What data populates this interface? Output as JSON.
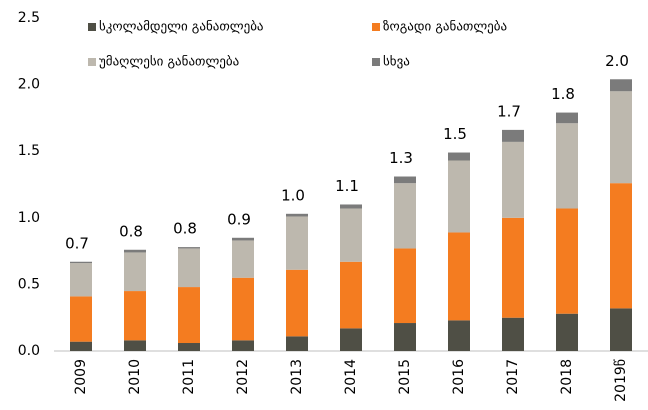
{
  "chart_data": {
    "type": "stacked_bar",
    "categories": [
      "2009",
      "2010",
      "2011",
      "2012",
      "2013",
      "2014",
      "2015",
      "2016",
      "2017",
      "2018",
      "2019წ"
    ],
    "series": [
      {
        "name": "სკოლამდელი განათლება",
        "color": "#4f4f45",
        "values": [
          0.07,
          0.08,
          0.06,
          0.08,
          0.11,
          0.17,
          0.21,
          0.23,
          0.25,
          0.28,
          0.32
        ]
      },
      {
        "name": "ზოგადი განათლება",
        "color": "#f47c20",
        "values": [
          0.34,
          0.37,
          0.42,
          0.47,
          0.5,
          0.5,
          0.56,
          0.66,
          0.75,
          0.79,
          0.94
        ]
      },
      {
        "name": "უმაღლესი განათლება",
        "color": "#bdb8ae",
        "values": [
          0.25,
          0.29,
          0.29,
          0.28,
          0.4,
          0.4,
          0.49,
          0.54,
          0.57,
          0.64,
          0.69
        ]
      },
      {
        "name": "სხვა",
        "color": "#7b7b7b",
        "values": [
          0.01,
          0.02,
          0.01,
          0.02,
          0.02,
          0.03,
          0.05,
          0.06,
          0.09,
          0.08,
          0.09
        ]
      }
    ],
    "total_labels": [
      "0.7",
      "0.8",
      "0.8",
      "0.9",
      "1.0",
      "1.1",
      "1.3",
      "1.5",
      "1.7",
      "1.8",
      "2.0"
    ],
    "ylim": [
      0,
      2.5
    ],
    "yticks": [
      {
        "value": 0,
        "label": "0.0"
      },
      {
        "value": 0.5,
        "label": "0.5"
      },
      {
        "value": 1,
        "label": "1.0"
      },
      {
        "value": 1.5,
        "label": "1.5"
      },
      {
        "value": 2,
        "label": "2.0"
      },
      {
        "value": 2.5,
        "label": "2.5"
      }
    ],
    "grid": false,
    "legend": "top-left"
  }
}
